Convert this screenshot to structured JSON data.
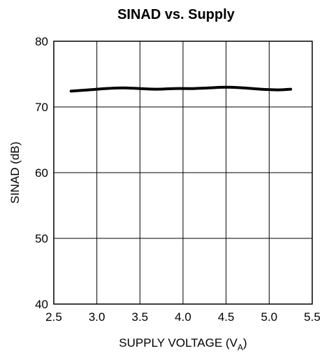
{
  "chart_data": {
    "type": "line",
    "title": "SINAD vs. Supply",
    "xlabel": "SUPPLY VOLTAGE (V",
    "xlabel_subscript": "A",
    "xlabel_suffix": ")",
    "ylabel": "SINAD (dB)",
    "xlim": [
      2.5,
      5.5
    ],
    "ylim": [
      40,
      80
    ],
    "xticks": [
      2.5,
      3.0,
      3.5,
      4.0,
      4.5,
      5.0,
      5.5
    ],
    "xtick_labels": [
      "2.5",
      "3.0",
      "3.5",
      "4.0",
      "4.5",
      "5.0",
      "5.5"
    ],
    "yticks": [
      40,
      50,
      60,
      70,
      80
    ],
    "ytick_labels": [
      "40",
      "50",
      "60",
      "70",
      "80"
    ],
    "grid": true,
    "series": [
      {
        "color": "#000000",
        "x": [
          2.7,
          2.9,
          3.1,
          3.3,
          3.5,
          3.7,
          3.9,
          4.1,
          4.3,
          4.5,
          4.7,
          4.9,
          5.1,
          5.25
        ],
        "y": [
          72.4,
          72.6,
          72.8,
          72.9,
          72.8,
          72.7,
          72.8,
          72.8,
          72.9,
          73.0,
          72.9,
          72.7,
          72.6,
          72.7
        ]
      }
    ]
  }
}
